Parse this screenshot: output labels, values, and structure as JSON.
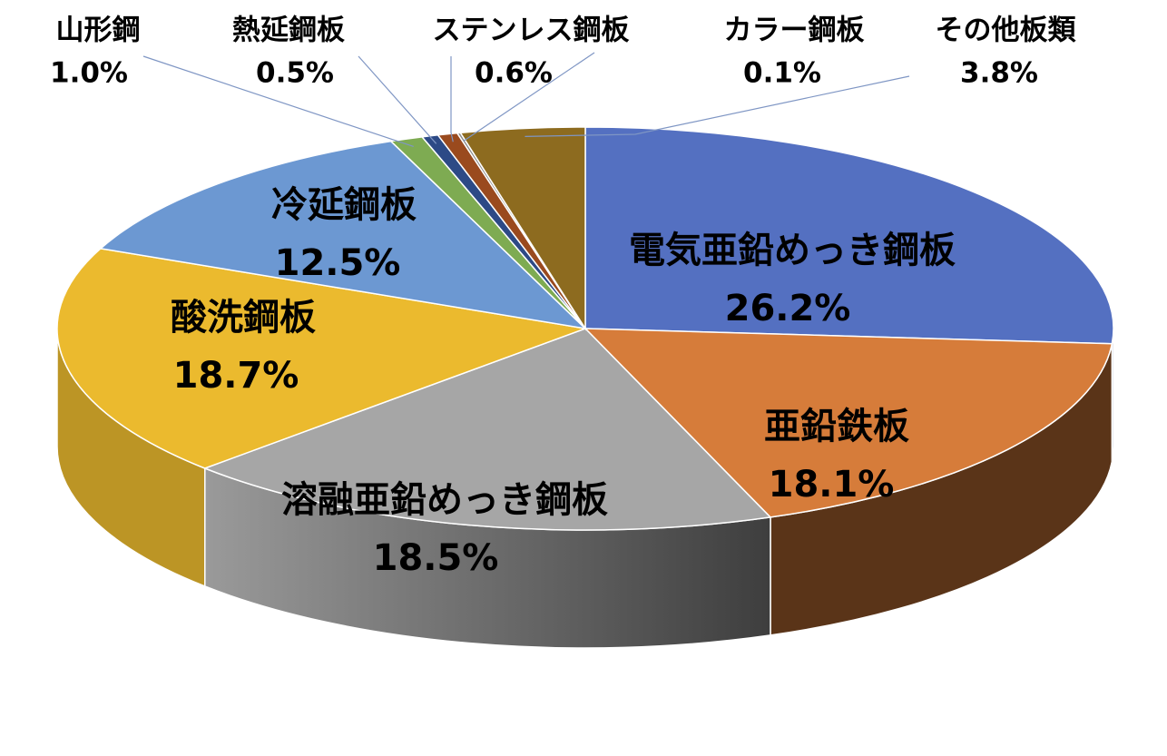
{
  "chart_data": {
    "type": "pie",
    "style": "3d",
    "title": "",
    "slices": [
      {
        "label": "電気亜鉛めっき鋼板",
        "value": 26.2,
        "display": "26.2%",
        "color": "#5470c1"
      },
      {
        "label": "亜鉛鉄板",
        "value": 18.1,
        "display": "18.1%",
        "color": "#d67c3a"
      },
      {
        "label": "溶融亜鉛めっき鋼板",
        "value": 18.5,
        "display": "18.5%",
        "color": "#a6a6a6"
      },
      {
        "label": "酸洗鋼板",
        "value": 18.7,
        "display": "18.7%",
        "color": "#ebba2e"
      },
      {
        "label": "冷延鋼板",
        "value": 12.5,
        "display": "12.5%",
        "color": "#6c98d2"
      },
      {
        "label": "山形鋼",
        "value": 1.0,
        "display": "1.0%",
        "color": "#7eab52"
      },
      {
        "label": "熱延鋼板",
        "value": 0.5,
        "display": "0.5%",
        "color": "#2d4a86"
      },
      {
        "label": "ステンレス鋼板",
        "value": 0.6,
        "display": "0.6%",
        "color": "#9a4a1e"
      },
      {
        "label": "カラー鋼板",
        "value": 0.1,
        "display": "0.1%",
        "color": "#8a8a8a"
      },
      {
        "label": "その他板類",
        "value": 3.8,
        "display": "3.8%",
        "color": "#8d6b1f"
      }
    ]
  }
}
